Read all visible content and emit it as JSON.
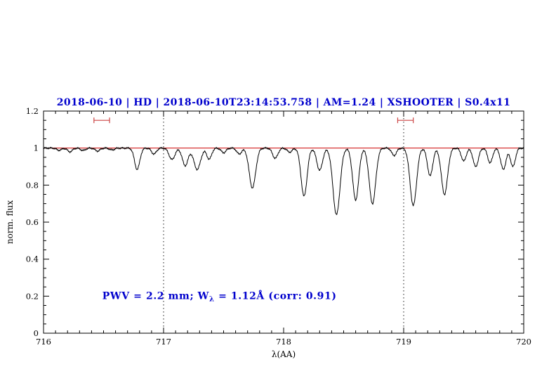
{
  "colors": {
    "title": "#0000cd",
    "annotation": "#0000cd",
    "spectrum": "#000000",
    "continuum": "#cc0000",
    "range_marker": "#cc4444",
    "axis": "#000000",
    "vline": "#000000",
    "background": "#ffffff"
  },
  "chart_data": {
    "type": "line",
    "title": "2018-06-10 | HD | 2018-06-10T23:14:53.758 | AM=1.24 | XSHOOTER | S0.4x11",
    "xlabel": "λ(AA)",
    "ylabel": "norm. flux",
    "xlim": [
      716,
      720
    ],
    "ylim": [
      0,
      1.2
    ],
    "xticks": [
      716,
      717,
      718,
      719,
      720
    ],
    "xtick_labels": [
      "716",
      "717",
      "718",
      "719",
      "720"
    ],
    "yticks": [
      0,
      0.2,
      0.4,
      0.6,
      0.8,
      1,
      1.2
    ],
    "ytick_labels": [
      "0",
      "0.2",
      "0.4",
      "0.6",
      "0.8",
      "1",
      "1.2"
    ],
    "x_minor_step": 0.1,
    "y_minor_step": 0.05,
    "grid": false,
    "legend": false,
    "model": "spectrum = continuum(1.0) minus gaussian absorption lines",
    "continuum_level": 1.0,
    "vlines": [
      717,
      719
    ],
    "range_markers": [
      {
        "x1": 716.42,
        "x2": 716.55,
        "y": 1.15
      },
      {
        "x1": 718.95,
        "x2": 719.08,
        "y": 1.15
      }
    ],
    "annotation": {
      "text": "PWV = 2.2 mm; Wλ = 1.12Å (corr: 0.91)",
      "parts": [
        "PWV = 2.2 mm; W",
        "λ",
        " = 1.12Å (corr: 0.91)"
      ],
      "x": 716.49,
      "y": 0.2
    },
    "absorption_lines": [
      {
        "c": 716.13,
        "d": 0.012,
        "w": 0.02
      },
      {
        "c": 716.22,
        "d": 0.02,
        "w": 0.02
      },
      {
        "c": 716.33,
        "d": 0.013,
        "w": 0.02
      },
      {
        "c": 716.45,
        "d": 0.016,
        "w": 0.02
      },
      {
        "c": 716.57,
        "d": 0.01,
        "w": 0.02
      },
      {
        "c": 716.78,
        "d": 0.115,
        "w": 0.022
      },
      {
        "c": 716.92,
        "d": 0.032,
        "w": 0.02
      },
      {
        "c": 717.07,
        "d": 0.062,
        "w": 0.024
      },
      {
        "c": 717.18,
        "d": 0.095,
        "w": 0.024
      },
      {
        "c": 717.28,
        "d": 0.115,
        "w": 0.028
      },
      {
        "c": 717.38,
        "d": 0.06,
        "w": 0.02
      },
      {
        "c": 717.5,
        "d": 0.025,
        "w": 0.02
      },
      {
        "c": 717.63,
        "d": 0.032,
        "w": 0.02
      },
      {
        "c": 717.74,
        "d": 0.215,
        "w": 0.027
      },
      {
        "c": 717.93,
        "d": 0.055,
        "w": 0.022
      },
      {
        "c": 718.05,
        "d": 0.022,
        "w": 0.02
      },
      {
        "c": 718.17,
        "d": 0.26,
        "w": 0.025
      },
      {
        "c": 718.3,
        "d": 0.12,
        "w": 0.024
      },
      {
        "c": 718.44,
        "d": 0.36,
        "w": 0.029
      },
      {
        "c": 718.6,
        "d": 0.28,
        "w": 0.025
      },
      {
        "c": 718.74,
        "d": 0.3,
        "w": 0.027
      },
      {
        "c": 718.92,
        "d": 0.04,
        "w": 0.02
      },
      {
        "c": 719.08,
        "d": 0.31,
        "w": 0.027
      },
      {
        "c": 719.22,
        "d": 0.15,
        "w": 0.022
      },
      {
        "c": 719.34,
        "d": 0.25,
        "w": 0.026
      },
      {
        "c": 719.5,
        "d": 0.07,
        "w": 0.02
      },
      {
        "c": 719.6,
        "d": 0.1,
        "w": 0.022
      },
      {
        "c": 719.72,
        "d": 0.08,
        "w": 0.02
      },
      {
        "c": 719.83,
        "d": 0.115,
        "w": 0.022
      },
      {
        "c": 719.91,
        "d": 0.1,
        "w": 0.02
      }
    ]
  }
}
